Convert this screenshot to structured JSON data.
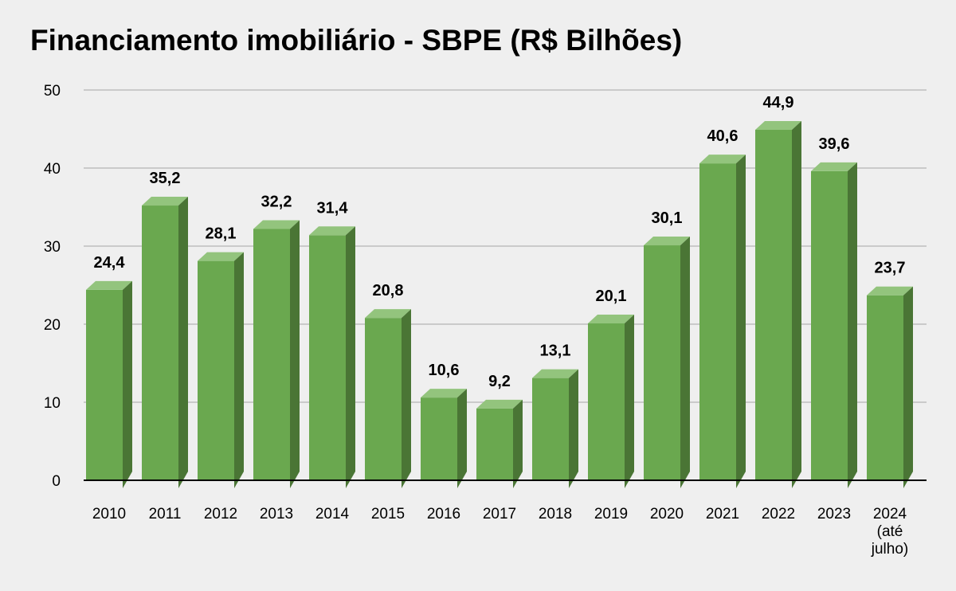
{
  "title": "Financiamento imobiliário - SBPE (R$ Bilhões)",
  "colors": {
    "bar_front": "#6aa84f",
    "bar_top": "#93c47d",
    "bar_side": "#4a7535",
    "grid": "#bdbdbd",
    "baseline": "#000000"
  },
  "chart_data": {
    "type": "bar",
    "title": "Financiamento imobiliário - SBPE (R$ Bilhões)",
    "categories": [
      "2010",
      "2011",
      "2012",
      "2013",
      "2014",
      "2015",
      "2016",
      "2017",
      "2018",
      "2019",
      "2020",
      "2021",
      "2022",
      "2023",
      "2024 (até julho)"
    ],
    "category_lines": [
      [
        "2010"
      ],
      [
        "2011"
      ],
      [
        "2012"
      ],
      [
        "2013"
      ],
      [
        "2014"
      ],
      [
        "2015"
      ],
      [
        "2016"
      ],
      [
        "2017"
      ],
      [
        "2018"
      ],
      [
        "2019"
      ],
      [
        "2020"
      ],
      [
        "2021"
      ],
      [
        "2022"
      ],
      [
        "2023"
      ],
      [
        "2024",
        "(até",
        "julho)"
      ]
    ],
    "values": [
      24.4,
      35.2,
      28.1,
      32.2,
      31.4,
      20.8,
      10.6,
      9.2,
      13.1,
      20.1,
      30.1,
      40.6,
      44.9,
      39.6,
      23.7
    ],
    "value_labels": [
      "24,4",
      "35,2",
      "28,1",
      "32,2",
      "31,4",
      "20,8",
      "10,6",
      "9,2",
      "13,1",
      "20,1",
      "30,1",
      "40,6",
      "44,9",
      "39,6",
      "23,7"
    ],
    "y_ticks": [
      0,
      10,
      20,
      30,
      40,
      50
    ],
    "ylim": [
      0,
      50
    ],
    "xlabel": "",
    "ylabel": "",
    "grid": true,
    "legend": "none"
  }
}
